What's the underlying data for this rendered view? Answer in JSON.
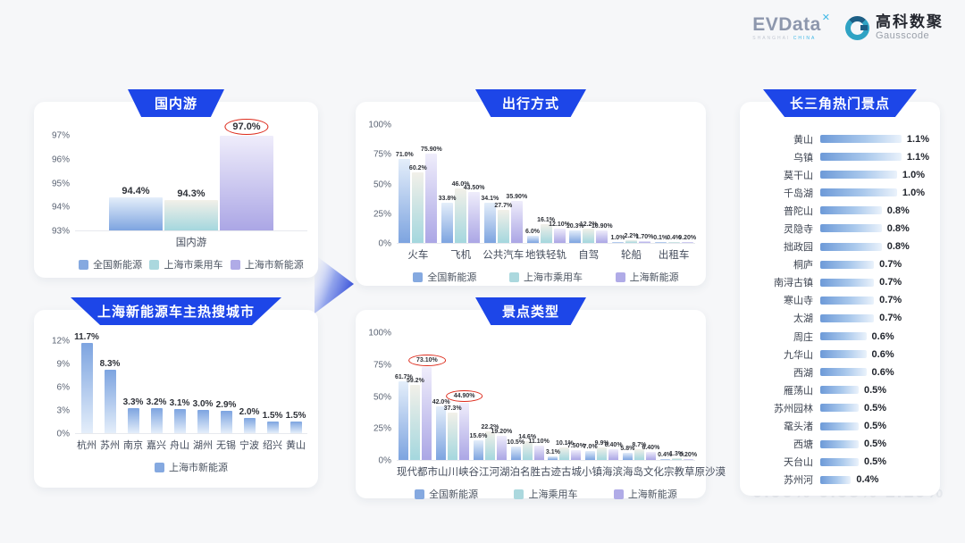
{
  "header": {
    "evdata_name": "EVData",
    "evdata_mark": "✕",
    "evdata_sub_1": "SHANGHAI",
    "evdata_sub_2": "CHINA",
    "gausscode_cn": "高科数聚",
    "gausscode_en": "Gausscode"
  },
  "watermark": "0.99%  0.55%  1.19%",
  "palette": {
    "national": {
      "main": "#7da4e0",
      "light": "#e4eefa",
      "legend": "#85a9e0"
    },
    "passenger": {
      "main": "#a4d7de",
      "light": "#f2f0e9",
      "legend": "#abd8de"
    },
    "ev": {
      "main": "#aba6e5",
      "light": "#efedfb",
      "legend": "#b0abe7"
    }
  },
  "chart_data": [
    {
      "id": "domestic-travel",
      "type": "bar",
      "title": "国内游",
      "gradient": "up",
      "categories": [
        "国内游"
      ],
      "yticks": [
        "97%",
        "96%",
        "95%",
        "94%",
        "93%"
      ],
      "ymin": 93,
      "ymax": 97.45,
      "grid": "off",
      "legend_position": "bottom",
      "series": [
        {
          "name": "全国新能源",
          "color": "national",
          "values": [
            94.4
          ],
          "labels": [
            "94.4%"
          ]
        },
        {
          "name": "上海市乘用车",
          "color": "passenger",
          "values": [
            94.3
          ],
          "labels": [
            "94.3%"
          ]
        },
        {
          "name": "上海市新能源",
          "color": "ev",
          "values": [
            97.0
          ],
          "labels": [
            "97.0%"
          ],
          "circled": [
            true
          ]
        }
      ]
    },
    {
      "id": "hot-search-cities",
      "type": "bar",
      "title": "上海新能源车主热搜城市",
      "gradient": "down",
      "categories": [
        "杭州",
        "苏州",
        "南京",
        "嘉兴",
        "舟山",
        "湖州",
        "无锡",
        "宁波",
        "绍兴",
        "黄山"
      ],
      "yticks": [
        "12%",
        "9%",
        "6%",
        "3%",
        "0%"
      ],
      "ymin": 0,
      "ymax": 13,
      "grid": "off",
      "legend_position": "bottom",
      "series": [
        {
          "name": "上海市新能源",
          "color": "national",
          "values": [
            11.7,
            8.3,
            3.3,
            3.2,
            3.1,
            3.0,
            2.9,
            2.0,
            1.5,
            1.5
          ],
          "labels": [
            "11.7%",
            "8.3%",
            "3.3%",
            "3.2%",
            "3.1%",
            "3.0%",
            "2.9%",
            "2.0%",
            "1.5%",
            "1.5%"
          ]
        }
      ]
    },
    {
      "id": "travel-modes",
      "type": "bar",
      "title": "出行方式",
      "gradient": "up",
      "categories": [
        "火车",
        "飞机",
        "公共汽车",
        "地铁轻轨",
        "自驾",
        "轮船",
        "出租车"
      ],
      "yticks": [
        "100%",
        "75%",
        "50%",
        "25%",
        "0%"
      ],
      "ymin": 0,
      "ymax": 100,
      "grid": "off",
      "legend_position": "bottom",
      "series": [
        {
          "name": "全国新能源",
          "color": "national",
          "values": [
            71.0,
            33.8,
            34.1,
            6.0,
            10.3,
            1.0,
            0.1
          ],
          "labels": [
            "71.0%",
            "33.8%",
            "34.1%",
            "6.0%",
            "10.3%",
            "1.0%",
            "0.1%"
          ]
        },
        {
          "name": "上海市乘用车",
          "color": "passenger",
          "values": [
            60.2,
            46.0,
            27.7,
            16.1,
            12.2,
            2.2,
            0.4
          ],
          "labels": [
            "60.2%",
            "46.0%",
            "27.7%",
            "16.1%",
            "12.2%",
            "2.2%",
            "0.4%"
          ]
        },
        {
          "name": "上海新能源",
          "color": "ev",
          "values": [
            75.9,
            43.5,
            35.9,
            12.1,
            10.9,
            1.7,
            0.2
          ],
          "labels": [
            "75.90%",
            "43.50%",
            "35.90%",
            "12.10%",
            "10.90%",
            "1.70%",
            "0.20%"
          ]
        }
      ]
    },
    {
      "id": "attraction-types",
      "type": "bar",
      "title": "景点类型",
      "gradient": "up",
      "categories": [
        "现代都市",
        "山川峡谷",
        "江河湖泊",
        "名胜古迹",
        "古城小镇",
        "海滨海岛",
        "文化宗教",
        "草原沙漠"
      ],
      "yticks": [
        "100%",
        "75%",
        "50%",
        "25%",
        "0%"
      ],
      "ymin": 0,
      "ymax": 100,
      "grid": "off",
      "legend_position": "bottom",
      "series": [
        {
          "name": "全国新能源",
          "color": "national",
          "values": [
            61.7,
            42.0,
            15.6,
            10.5,
            3.1,
            7.0,
            5.8,
            0.4
          ],
          "labels": [
            "61.7%",
            "42.0%",
            "15.6%",
            "10.5%",
            "3.1%",
            "7.0%",
            "5.8%",
            "0.4%"
          ]
        },
        {
          "name": "上海乘用车",
          "color": "passenger",
          "values": [
            59.2,
            37.3,
            22.2,
            14.6,
            10.1,
            9.9,
            8.7,
            1.3
          ],
          "labels": [
            "59.2%",
            "37.3%",
            "22.2%",
            "14.6%",
            "10.1%",
            "9.9%",
            "8.7%",
            "1.3%"
          ]
        },
        {
          "name": "上海新能源",
          "color": "ev",
          "values": [
            73.1,
            44.9,
            19.2,
            11.1,
            7.5,
            8.4,
            6.4,
            0.2
          ],
          "labels": [
            "73.10%",
            "44.90%",
            "19.20%",
            "11.10%",
            "7.50%",
            "8.40%",
            "6.40%",
            "0.20%"
          ],
          "circled": [
            true,
            true,
            false,
            false,
            false,
            false,
            false,
            false
          ]
        }
      ]
    },
    {
      "id": "yangtze-delta-hotspots",
      "type": "hbar",
      "title": "长三角热门景点",
      "xmax": 1.42,
      "items": [
        {
          "label": "黄山",
          "value": 1.1,
          "display": "1.1%"
        },
        {
          "label": "乌镇",
          "value": 1.1,
          "display": "1.1%"
        },
        {
          "label": "莫干山",
          "value": 1.0,
          "display": "1.0%"
        },
        {
          "label": "千岛湖",
          "value": 1.0,
          "display": "1.0%"
        },
        {
          "label": "普陀山",
          "value": 0.8,
          "display": "0.8%"
        },
        {
          "label": "灵隐寺",
          "value": 0.8,
          "display": "0.8%"
        },
        {
          "label": "拙政园",
          "value": 0.8,
          "display": "0.8%"
        },
        {
          "label": "桐庐",
          "value": 0.7,
          "display": "0.7%"
        },
        {
          "label": "南浔古镇",
          "value": 0.7,
          "display": "0.7%"
        },
        {
          "label": "寒山寺",
          "value": 0.7,
          "display": "0.7%"
        },
        {
          "label": "太湖",
          "value": 0.7,
          "display": "0.7%"
        },
        {
          "label": "周庄",
          "value": 0.6,
          "display": "0.6%"
        },
        {
          "label": "九华山",
          "value": 0.6,
          "display": "0.6%"
        },
        {
          "label": "西湖",
          "value": 0.6,
          "display": "0.6%"
        },
        {
          "label": "雁荡山",
          "value": 0.5,
          "display": "0.5%"
        },
        {
          "label": "苏州园林",
          "value": 0.5,
          "display": "0.5%"
        },
        {
          "label": "鼋头渚",
          "value": 0.5,
          "display": "0.5%"
        },
        {
          "label": "西塘",
          "value": 0.5,
          "display": "0.5%"
        },
        {
          "label": "天台山",
          "value": 0.5,
          "display": "0.5%"
        },
        {
          "label": "苏州河",
          "value": 0.4,
          "display": "0.4%"
        }
      ]
    }
  ]
}
